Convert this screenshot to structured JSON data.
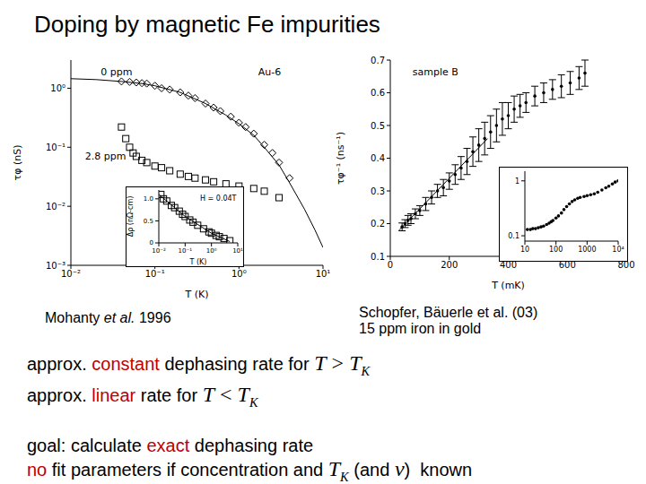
{
  "title": "Doping by magnetic Fe impurities",
  "chart_data": [
    {
      "type": "scatter",
      "log": true,
      "xlabel": "T (K)",
      "ylabel": "τφ (nS)",
      "xlim": [
        0.01,
        10
      ],
      "ylim": [
        0.001,
        3
      ],
      "xticks": [
        {
          "value": 0.01,
          "label": "10⁻²"
        },
        {
          "value": 0.1,
          "label": "10⁻¹"
        },
        {
          "value": 1,
          "label": "10⁰"
        },
        {
          "value": 10,
          "label": "10¹"
        }
      ],
      "yticks": [
        {
          "value": 0.001,
          "label": "10⁻³"
        },
        {
          "value": 0.01,
          "label": "10⁻²"
        },
        {
          "value": 0.1,
          "label": "10⁻¹"
        },
        {
          "value": 1,
          "label": "10⁰"
        }
      ],
      "annotations": [
        {
          "text": "0 ppm",
          "x": 0.02,
          "y": 1.9
        },
        {
          "text": "Au-6",
          "x": 1.5,
          "y": 1.9
        },
        {
          "text": "2.8 ppm",
          "x": 0.013,
          "y": 0.07
        }
      ],
      "series": [
        {
          "x": [
            0.01,
            0.02,
            0.04,
            0.07,
            0.1,
            0.2,
            0.4,
            0.7,
            1,
            1.5,
            2,
            3,
            4,
            6,
            8,
            10
          ],
          "values": [
            1.45,
            1.4,
            1.3,
            1.2,
            1.1,
            0.85,
            0.55,
            0.35,
            0.25,
            0.16,
            0.1,
            0.05,
            0.025,
            0.009,
            0.004,
            0.002
          ],
          "color": "#000000",
          "marker": "none",
          "line_style": "solid"
        },
        {
          "x": [
            0.04,
            0.05,
            0.06,
            0.07,
            0.08,
            0.1,
            0.12,
            0.15,
            0.2,
            0.25,
            0.3,
            0.4,
            0.5,
            0.6,
            0.8,
            1,
            1.2,
            1.5,
            2,
            2.5,
            3,
            4
          ],
          "values": [
            1.3,
            1.28,
            1.25,
            1.22,
            1.2,
            1.1,
            1.0,
            0.95,
            0.85,
            0.75,
            0.68,
            0.55,
            0.47,
            0.41,
            0.33,
            0.26,
            0.22,
            0.17,
            0.11,
            0.08,
            0.055,
            0.03
          ],
          "color": "#000000",
          "marker": "diamond"
        },
        {
          "x": [
            0.04,
            0.045,
            0.05,
            0.055,
            0.06,
            0.07,
            0.08,
            0.1,
            0.12,
            0.15,
            0.2,
            0.25,
            0.3,
            0.4,
            0.5,
            0.7,
            1,
            1.5,
            2,
            3
          ],
          "values": [
            0.22,
            0.14,
            0.1,
            0.08,
            0.07,
            0.06,
            0.055,
            0.048,
            0.045,
            0.04,
            0.035,
            0.032,
            0.03,
            0.028,
            0.026,
            0.024,
            0.022,
            0.02,
            0.018,
            0.014
          ],
          "color": "#000000",
          "marker": "square"
        }
      ]
    },
    {
      "type": "scatter",
      "log": "x",
      "xlabel": "T (K)",
      "ylabel": "Δρ (nΩ-cm)",
      "xlim": [
        0.01,
        10
      ],
      "ylim": [
        0,
        1.2
      ],
      "xticks": [
        {
          "value": 0.01,
          "label": "10⁻²"
        },
        {
          "value": 0.1,
          "label": "10⁻¹"
        },
        {
          "value": 1,
          "label": "10⁰"
        },
        {
          "value": 10,
          "label": "10¹"
        }
      ],
      "yticks": [
        0,
        0.5,
        {
          "value": 1,
          "label": "1.0"
        }
      ],
      "annotations": [
        {
          "text": "H = 0.04T",
          "x": 0.25,
          "y": 1.02
        }
      ],
      "series": [
        {
          "x": [
            0.01,
            0.1,
            1,
            5
          ],
          "values": [
            1.1,
            0.6,
            0.22,
            0.03
          ],
          "color": "#000000",
          "marker": "none",
          "line_style": "solid"
        },
        {
          "x": [
            0.012,
            0.015,
            0.02,
            0.03,
            0.04,
            0.06,
            0.08,
            0.1,
            0.15,
            0.2,
            0.3,
            0.5,
            0.8,
            1,
            1.5,
            2,
            3,
            5
          ],
          "values": [
            1.1,
            1.0,
            0.95,
            0.85,
            0.8,
            0.72,
            0.65,
            0.6,
            0.52,
            0.47,
            0.4,
            0.32,
            0.25,
            0.22,
            0.17,
            0.14,
            0.1,
            0.05
          ],
          "color": "#000000",
          "marker": "square"
        }
      ]
    },
    {
      "type": "scatter",
      "xlabel": "T (mK)",
      "ylabel": "τφ⁻¹ (ns⁻¹)",
      "xlim": [
        0,
        800
      ],
      "ylim": [
        0.1,
        0.7
      ],
      "xticks": [
        0,
        200,
        400,
        600,
        800
      ],
      "yticks": [
        0.1,
        0.2,
        0.3,
        0.4,
        0.5,
        0.6,
        0.7
      ],
      "annotations": [
        {
          "text": "sample B",
          "x": 60,
          "y": 0.665
        }
      ],
      "series": [
        {
          "x": [
            30,
            330
          ],
          "values": [
            0.18,
            0.46
          ],
          "color": "#000000",
          "marker": "none",
          "line_style": "solid"
        },
        {
          "x": [
            40,
            50,
            60,
            70,
            85,
            100,
            120,
            140,
            160,
            180,
            200,
            220,
            240,
            260,
            280,
            300,
            320,
            340,
            360,
            380,
            400,
            420,
            440,
            460,
            490,
            520,
            550,
            580,
            610,
            640,
            660
          ],
          "values": [
            0.19,
            0.2,
            0.21,
            0.215,
            0.23,
            0.24,
            0.26,
            0.28,
            0.3,
            0.31,
            0.33,
            0.35,
            0.37,
            0.39,
            0.42,
            0.44,
            0.46,
            0.48,
            0.5,
            0.52,
            0.53,
            0.55,
            0.56,
            0.57,
            0.59,
            0.6,
            0.61,
            0.62,
            0.63,
            0.645,
            0.66
          ],
          "errors": [
            0.012,
            0.012,
            0.015,
            0.015,
            0.015,
            0.015,
            0.02,
            0.02,
            0.02,
            0.025,
            0.025,
            0.03,
            0.035,
            0.04,
            0.045,
            0.05,
            0.05,
            0.05,
            0.05,
            0.05,
            0.04,
            0.04,
            0.035,
            0.03,
            0.03,
            0.03,
            0.03,
            0.035,
            0.035,
            0.035,
            0.04
          ],
          "color": "#000000",
          "marker": "circle"
        }
      ]
    },
    {
      "type": "scatter",
      "log": true,
      "xlim": [
        10,
        10000
      ],
      "ylim": [
        0.08,
        1.5
      ],
      "xticks": [
        10,
        100,
        1000,
        {
          "value": 10000,
          "label": "10⁴"
        }
      ],
      "yticks": [
        0.1,
        1
      ],
      "series": [
        {
          "x": [
            12,
            15,
            18,
            22,
            27,
            33,
            40,
            50,
            60,
            70,
            80,
            100,
            120,
            150,
            180,
            220,
            270,
            330,
            400,
            500,
            600,
            800,
            1000,
            1300,
            1700,
            2200,
            3000,
            4000,
            5000,
            6500,
            8000,
            10000
          ],
          "values": [
            0.13,
            0.13,
            0.135,
            0.135,
            0.14,
            0.145,
            0.15,
            0.16,
            0.17,
            0.18,
            0.19,
            0.21,
            0.23,
            0.26,
            0.3,
            0.34,
            0.38,
            0.42,
            0.45,
            0.48,
            0.5,
            0.52,
            0.54,
            0.56,
            0.58,
            0.62,
            0.68,
            0.75,
            0.8,
            0.88,
            0.95,
            1.0
          ],
          "color": "#000000",
          "marker": "circle"
        }
      ]
    }
  ],
  "captions": [
    {
      "lines": [
        [
          {
            "text": "Mohanty "
          },
          {
            "text": "et al.",
            "italic": true
          },
          {
            "text": " 1996"
          }
        ]
      ]
    },
    {
      "lines": [
        [
          {
            "text": "Schopfer, Bäuerle et al. (03)"
          }
        ],
        [
          {
            "text": "15 ppm iron in gold"
          }
        ]
      ]
    }
  ],
  "text": [
    [
      {
        "text": "approx. "
      },
      {
        "text": "constant",
        "color": "#c00000"
      },
      {
        "text": " dephasing rate for "
      },
      {
        "var": "T"
      },
      {
        "text": " > ",
        "math": true
      },
      {
        "var": "T",
        "sub": "K"
      }
    ],
    [
      {
        "text": "approx. "
      },
      {
        "text": "linear",
        "color": "#c00000"
      },
      {
        "text": " rate for "
      },
      {
        "var": "T"
      },
      {
        "text": " < ",
        "math": true
      },
      {
        "var": "T",
        "sub": "K"
      }
    ],
    [
      {
        "text": "goal: calculate "
      },
      {
        "text": "exact",
        "color": "#c00000"
      },
      {
        "text": " dephasing rate"
      }
    ],
    [
      {
        "text": "no",
        "color": "#c00000"
      },
      {
        "text": " fit parameters if concentration and "
      },
      {
        "var": "T",
        "sub": "K"
      },
      {
        "text": " (and "
      },
      {
        "var": "ν"
      },
      {
        "text": ")  known"
      }
    ]
  ]
}
